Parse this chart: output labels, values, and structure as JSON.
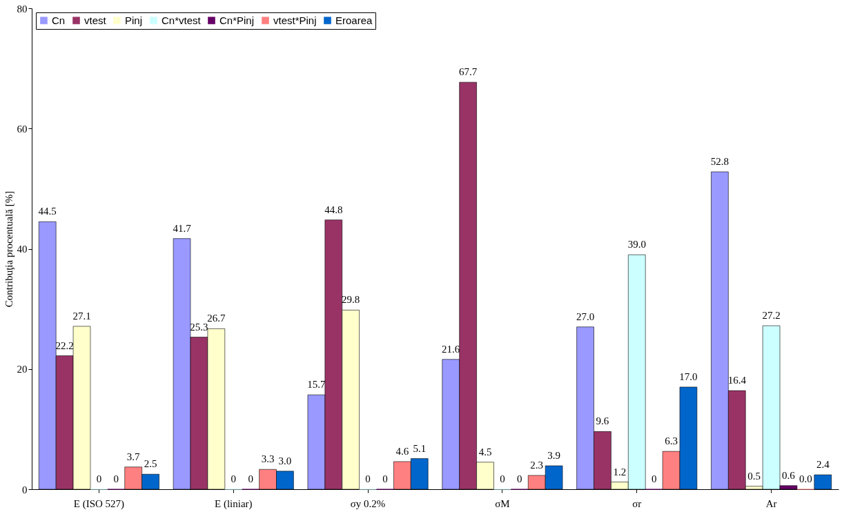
{
  "chart_data": {
    "type": "bar",
    "ylabel": "Contribuţia procentuală [%]",
    "categories": [
      "E (ISO 527)",
      "E (liniar)",
      "σy 0.2%",
      "σM",
      "σr",
      "Ar"
    ],
    "ylim": [
      0,
      80
    ],
    "yticks": [
      0,
      20,
      40,
      60,
      80
    ],
    "grid": false,
    "legend": "top left",
    "series": [
      {
        "name": "Cn",
        "color": "#9999ff",
        "values": [
          44.5,
          41.7,
          15.7,
          21.6,
          27.0,
          52.8
        ],
        "value_labels": [
          "44.5",
          "41.7",
          "15.7",
          "21.6",
          "27.0",
          "52.8"
        ]
      },
      {
        "name": "vtest",
        "color": "#993366",
        "values": [
          22.2,
          25.3,
          44.8,
          67.7,
          9.6,
          16.4
        ],
        "value_labels": [
          "22.2",
          "25.3",
          "44.8",
          "67.7",
          "9.6",
          "16.4"
        ]
      },
      {
        "name": "Pinj",
        "color": "#ffffcc",
        "values": [
          27.1,
          26.7,
          29.8,
          4.5,
          1.2,
          0.5
        ],
        "value_labels": [
          "27.1",
          "26.7",
          "29.8",
          "4.5",
          "1.2",
          "0.5"
        ]
      },
      {
        "name": "Cn*vtest",
        "color": "#ccffff",
        "values": [
          0,
          0,
          0,
          0,
          39.0,
          27.2
        ],
        "value_labels": [
          "0",
          "0",
          "0",
          "0",
          "39.0",
          "27.2"
        ]
      },
      {
        "name": "Cn*Pinj",
        "color": "#660066",
        "values": [
          0,
          0,
          0,
          0,
          0,
          0.6
        ],
        "value_labels": [
          "0",
          "0",
          "0",
          "0",
          "0",
          "0.6"
        ]
      },
      {
        "name": "vtest*Pinj",
        "color": "#ff8080",
        "values": [
          3.7,
          3.3,
          4.6,
          2.3,
          6.3,
          0.0
        ],
        "value_labels": [
          "3.7",
          "3.3",
          "4.6",
          "2.3",
          "6.3",
          "0.0"
        ]
      },
      {
        "name": "Eroarea",
        "color": "#0066cc",
        "values": [
          2.5,
          3.0,
          5.1,
          3.9,
          17.0,
          2.4
        ],
        "value_labels": [
          "2.5",
          "3.0",
          "5.1",
          "3.9",
          "17.0",
          "2.4"
        ]
      }
    ]
  }
}
